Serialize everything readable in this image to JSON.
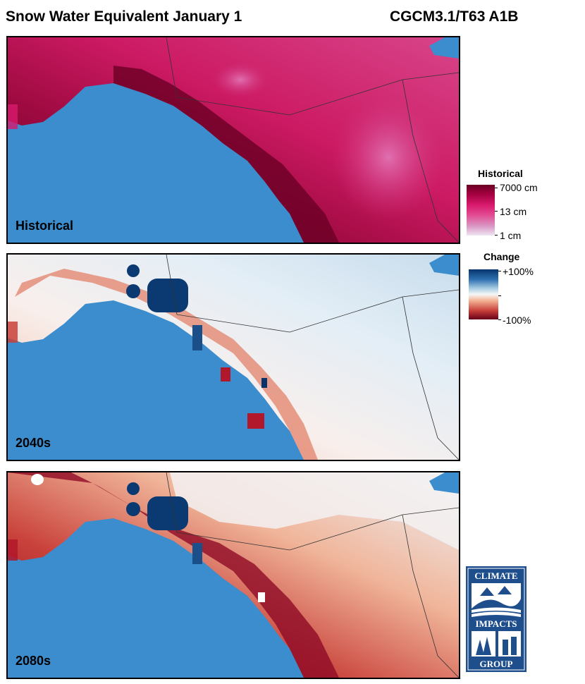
{
  "header": {
    "title": "Snow Water Equivalent January 1",
    "model": "CGCM3.1/T63 A1B"
  },
  "panels": [
    {
      "id": "historical",
      "label": "Historical",
      "colormap": "historical"
    },
    {
      "id": "2040s",
      "label": "2040s",
      "colormap": "change"
    },
    {
      "id": "2080s",
      "label": "2080s",
      "colormap": "change"
    }
  ],
  "legends": {
    "historical": {
      "title": "Historical",
      "labels": [
        "7000 cm",
        "13 cm",
        "1 cm"
      ],
      "colors": [
        "#6a0024",
        "#d81a6d",
        "#f1e6f3"
      ]
    },
    "change": {
      "title": "Change",
      "labels": [
        "+100%",
        "-100%"
      ],
      "colors": [
        "#08346b",
        "#f7f7f7",
        "#680019"
      ]
    }
  },
  "map": {
    "ocean_color": "#3b8dce"
  },
  "logo": {
    "text_top": "CLIMATE",
    "text_middle": "IMPACTS",
    "text_bottom": "GROUP",
    "colors": [
      "#1f4e8c",
      "#ffffff"
    ]
  }
}
